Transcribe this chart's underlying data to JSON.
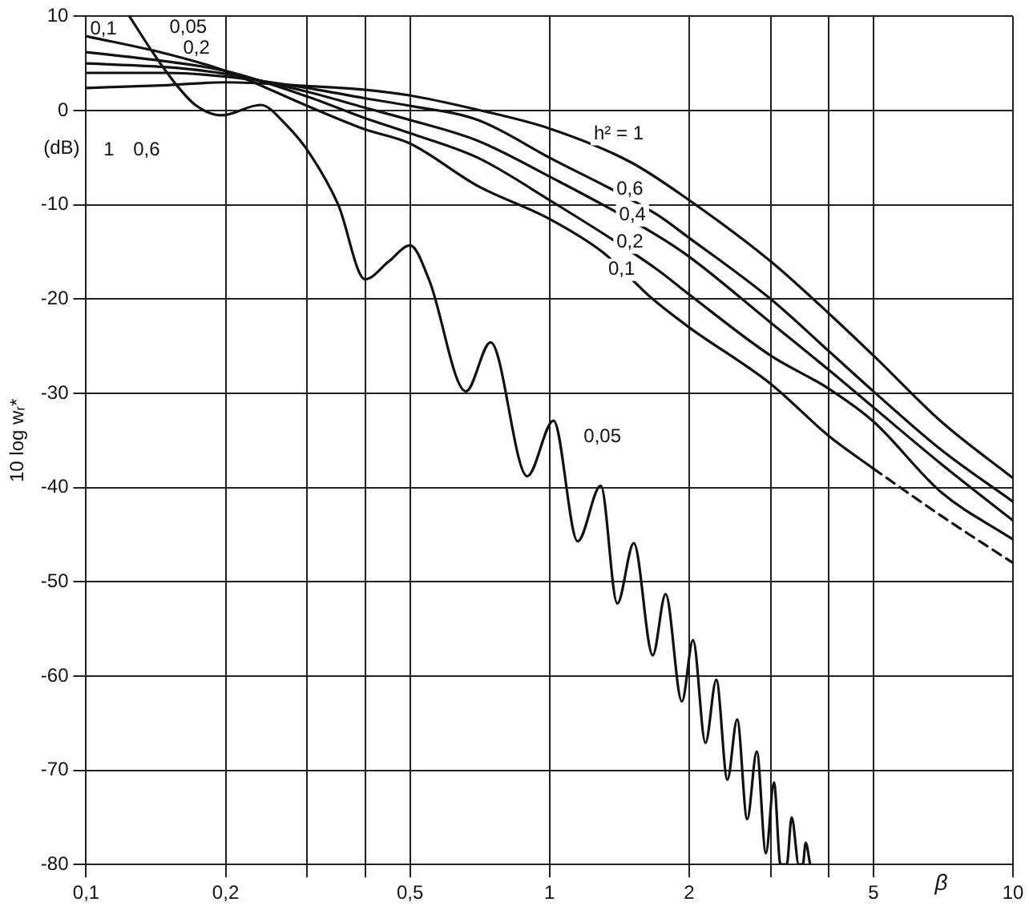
{
  "chart_data": {
    "type": "line",
    "xlabel": "β",
    "ylabel": "10 log wᵣ*",
    "log": "x",
    "grid": true,
    "legend": false,
    "marker": "none",
    "line_style": "solid",
    "xlim": [
      0.1,
      10
    ],
    "xticks": [
      {
        "value": 0.1,
        "label": "0,1"
      },
      {
        "value": 0.2,
        "label": "0,2"
      },
      {
        "value": 0.3,
        "label": null
      },
      {
        "value": 0.4,
        "label": null
      },
      {
        "value": 0.5,
        "label": "0,5"
      },
      1,
      2,
      {
        "value": 3,
        "label": null
      },
      {
        "value": 4,
        "label": null
      },
      5,
      10
    ],
    "ylim": [
      -80,
      10
    ],
    "yticks": [
      10,
      0,
      -10,
      -20,
      -30,
      -40,
      -50,
      -60,
      -70,
      -80
    ],
    "series": [
      {
        "color": "#111111",
        "x": [
          0.1,
          0.15,
          0.2,
          0.3,
          0.4,
          0.5,
          0.67,
          1,
          1.5,
          2,
          3,
          4,
          5,
          7,
          10
        ],
        "values": [
          2.4,
          2.7,
          3.0,
          2.6,
          2.2,
          1.6,
          0.3,
          -1.9,
          -5.5,
          -9.5,
          -16,
          -21.5,
          -26,
          -33,
          -39
        ]
      },
      {
        "color": "#111111",
        "x": [
          0.1,
          0.15,
          0.2,
          0.3,
          0.4,
          0.5,
          0.7,
          1,
          1.7,
          2,
          3,
          4,
          5,
          7,
          10
        ],
        "values": [
          4.0,
          4.0,
          3.6,
          2.4,
          1.3,
          0.5,
          -1,
          -5,
          -11,
          -13.5,
          -20,
          -25.5,
          -29.8,
          -36,
          -41.5
        ]
      },
      {
        "color": "#111111",
        "x": [
          0.1,
          0.15,
          0.2,
          0.3,
          0.4,
          0.5,
          0.7,
          1,
          1.7,
          2,
          3,
          4,
          5,
          7,
          10
        ],
        "values": [
          5.0,
          4.6,
          3.9,
          2.0,
          0.3,
          -1,
          -3.2,
          -7,
          -13.2,
          -15.5,
          -22.5,
          -27.5,
          -31.5,
          -37.5,
          -43.5
        ]
      },
      {
        "color": "#111111",
        "x": [
          0.1,
          0.15,
          0.2,
          0.3,
          0.4,
          0.5,
          0.7,
          1,
          1.7,
          2,
          3,
          4,
          5,
          7,
          10
        ],
        "values": [
          6.2,
          5.2,
          4.2,
          1.5,
          -0.8,
          -2.4,
          -5,
          -9.5,
          -16.8,
          -19.5,
          -26,
          -29.5,
          -33,
          -40.5,
          -45.5
        ]
      },
      {
        "color": "#111111",
        "x": [
          0.1,
          0.15,
          0.2,
          0.3,
          0.4,
          0.5,
          0.7,
          1,
          1.3,
          1.67,
          2,
          3,
          4,
          5
        ],
        "values": [
          7.9,
          6,
          4.2,
          0.5,
          -2,
          -3.5,
          -8,
          -11.5,
          -15,
          -20,
          -23,
          -29,
          -34.5,
          -38
        ]
      },
      {
        "color": "#111111",
        "line_style": "dashed",
        "x": [
          5,
          7,
          10
        ],
        "values": [
          -38,
          -43,
          -48
        ]
      },
      {
        "color": "#111111",
        "x": [
          0.124,
          0.14,
          0.155,
          0.172,
          0.196,
          0.238,
          0.27,
          0.305,
          0.35,
          0.4,
          0.45,
          0.5,
          0.55,
          0.66,
          0.746,
          0.895,
          1.02,
          1.15,
          1.29,
          1.4,
          1.52,
          1.67,
          1.78,
          1.93,
          2.04,
          2.17,
          2.29,
          2.42,
          2.54,
          2.67,
          2.8,
          2.93,
          3.05,
          3.15,
          3.25,
          3.33,
          3.45,
          3.52,
          3.57,
          3.65
        ],
        "values": [
          10,
          6,
          3,
          0.6,
          -0.5,
          0.6,
          -1.5,
          -4.7,
          -10,
          -17.9,
          -16,
          -14.3,
          -18,
          -29.8,
          -24.6,
          -38.8,
          -32.9,
          -45.7,
          -39.8,
          -52.3,
          -45.9,
          -57.8,
          -51.3,
          -62.7,
          -56.2,
          -67.1,
          -60.4,
          -71,
          -64.6,
          -75.2,
          -68,
          -78.8,
          -71.3,
          -80,
          -80,
          -75,
          -80,
          -80,
          -77.7,
          -80
        ]
      }
    ],
    "annotations": [
      "(dB)",
      "h² = 1",
      "0,6",
      "0,4",
      "0,2",
      "0,1",
      "0,05",
      "0,1",
      "0,05",
      "0,2",
      "1",
      "0,6"
    ]
  }
}
